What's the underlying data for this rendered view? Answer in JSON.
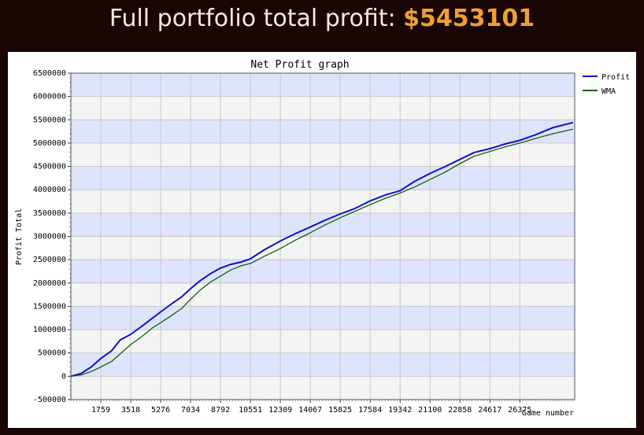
{
  "header": {
    "label": "Full portfolio total profit: ",
    "amount": "$5453101",
    "accent_color": "#f0a030"
  },
  "chart_data": {
    "type": "line",
    "title": "Net Profit graph",
    "xlabel": "Game number",
    "ylabel": "Profit Total",
    "xlim": [
      0,
      29600
    ],
    "ylim": [
      -500000,
      6500000
    ],
    "x_ticks": [
      "1759",
      "3518",
      "5276",
      "7034",
      "8792",
      "10551",
      "12309",
      "14067",
      "15825",
      "17584",
      "19342",
      "21100",
      "22858",
      "24617",
      "26375"
    ],
    "y_ticks": [
      "6500000",
      "6000000",
      "5500000",
      "5000000",
      "4500000",
      "4000000",
      "3500000",
      "3000000",
      "2500000",
      "2000000",
      "1500000",
      "1000000",
      "500000",
      "0",
      "-500000"
    ],
    "legend_position": "top-right",
    "grid": true,
    "series": [
      {
        "name": "Profit",
        "color": "#1010cc",
        "x": [
          0,
          600,
          1200,
          1759,
          2400,
          2900,
          3518,
          4200,
          4800,
          5276,
          5900,
          6500,
          7034,
          7600,
          8200,
          8792,
          9400,
          10000,
          10551,
          11400,
          12309,
          13200,
          14067,
          14900,
          15825,
          16700,
          17584,
          18500,
          19342,
          20200,
          21100,
          22000,
          22858,
          23700,
          24617,
          25500,
          26375,
          27300,
          28300,
          29500
        ],
        "values": [
          0,
          60000,
          200000,
          380000,
          550000,
          780000,
          900000,
          1080000,
          1250000,
          1380000,
          1550000,
          1700000,
          1880000,
          2050000,
          2200000,
          2320000,
          2400000,
          2450000,
          2520000,
          2720000,
          2900000,
          3060000,
          3200000,
          3340000,
          3480000,
          3600000,
          3760000,
          3890000,
          3980000,
          4180000,
          4350000,
          4500000,
          4650000,
          4800000,
          4880000,
          4980000,
          5060000,
          5180000,
          5330000,
          5440000
        ]
      },
      {
        "name": "WMA",
        "color": "#106010",
        "x": [
          0,
          600,
          1200,
          1759,
          2400,
          2900,
          3518,
          4200,
          4800,
          5276,
          5900,
          6500,
          7034,
          7600,
          8200,
          8792,
          9400,
          10000,
          10551,
          11400,
          12309,
          13200,
          14067,
          14900,
          15825,
          16700,
          17584,
          18500,
          19342,
          20200,
          21100,
          22000,
          22858,
          23700,
          24617,
          25500,
          26375,
          27300,
          28300,
          29500
        ],
        "values": [
          0,
          30000,
          100000,
          200000,
          320000,
          480000,
          680000,
          860000,
          1040000,
          1150000,
          1300000,
          1450000,
          1650000,
          1850000,
          2020000,
          2150000,
          2280000,
          2370000,
          2420000,
          2580000,
          2740000,
          2920000,
          3080000,
          3240000,
          3400000,
          3540000,
          3680000,
          3820000,
          3930000,
          4060000,
          4220000,
          4380000,
          4560000,
          4720000,
          4820000,
          4920000,
          5000000,
          5100000,
          5200000,
          5300000
        ]
      }
    ]
  }
}
